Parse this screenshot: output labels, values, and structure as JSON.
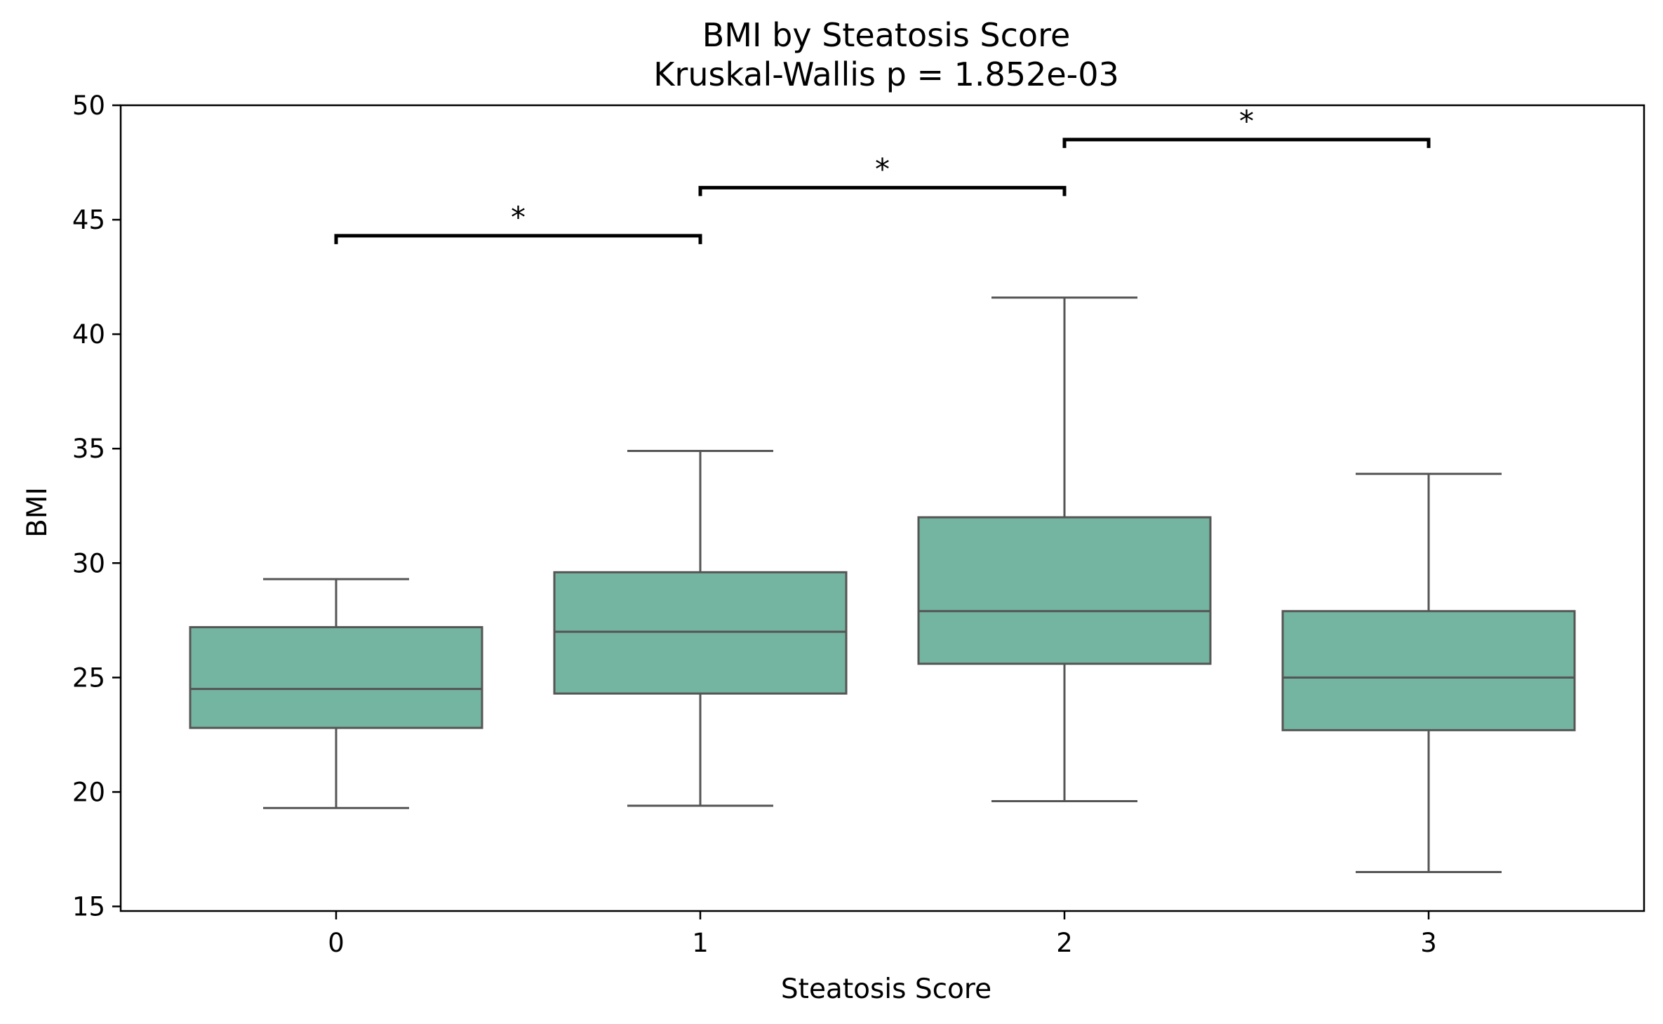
{
  "chart_data": {
    "type": "box",
    "title": "BMI by Steatosis Score",
    "subtitle": "Kruskal-Wallis p = 1.852e-03",
    "xlabel": "Steatosis Score",
    "ylabel": "BMI",
    "categories": [
      "0",
      "1",
      "2",
      "3"
    ],
    "ylim": [
      14.8,
      50.0
    ],
    "yticks": [
      15,
      20,
      25,
      30,
      35,
      40,
      45,
      50
    ],
    "grid": false,
    "box_color": "#73b5a0",
    "line_color": "#555555",
    "boxes": [
      {
        "category": "0",
        "whisker_low": 19.3,
        "q1": 22.8,
        "median": 24.5,
        "q3": 27.2,
        "whisker_high": 29.3
      },
      {
        "category": "1",
        "whisker_low": 19.4,
        "q1": 24.3,
        "median": 27.0,
        "q3": 29.6,
        "whisker_high": 34.9
      },
      {
        "category": "2",
        "whisker_low": 19.6,
        "q1": 25.6,
        "median": 27.9,
        "q3": 32.0,
        "whisker_high": 41.6
      },
      {
        "category": "3",
        "whisker_low": 16.5,
        "q1": 22.7,
        "median": 25.0,
        "q3": 27.9,
        "whisker_high": 33.9
      }
    ],
    "annotations": [
      {
        "from": "0",
        "to": "1",
        "y": 44.3,
        "text": "*"
      },
      {
        "from": "1",
        "to": "2",
        "y": 46.4,
        "text": "*"
      },
      {
        "from": "2",
        "to": "3",
        "y": 48.5,
        "text": "*"
      }
    ]
  }
}
